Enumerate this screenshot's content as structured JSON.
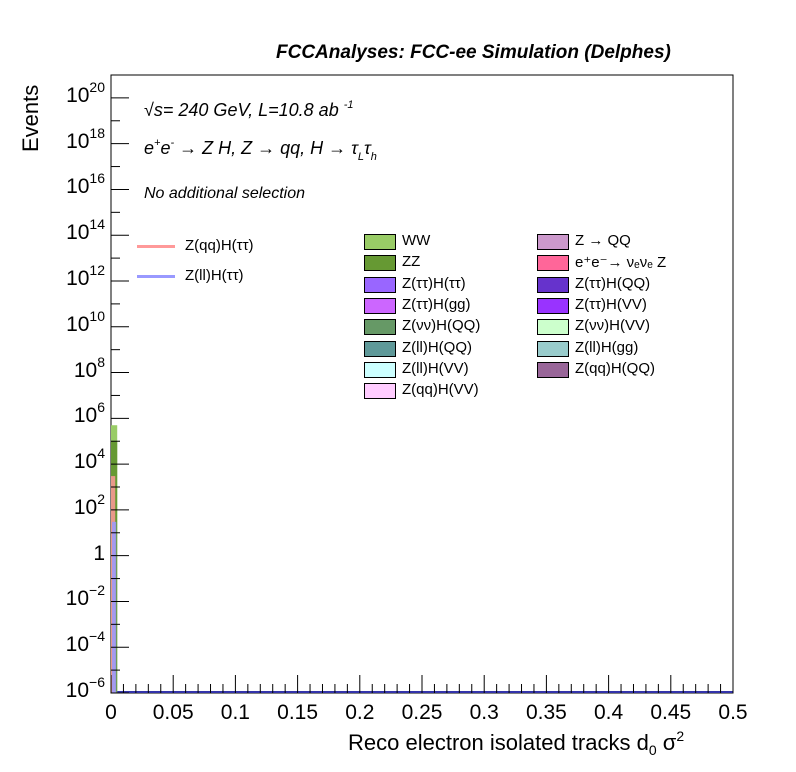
{
  "header": {
    "title": "FCCAnalyses: FCC-ee Simulation (Delphes)"
  },
  "annotations": {
    "energy": "= 240 GeV, L=10.8 ab",
    "energy_prefix": "√s",
    "lumi_exp": "-1",
    "process_prefix": "e",
    "process_sup_plus": "+",
    "process_e2": "e",
    "process_sup_minus": "-",
    "process_rest": " → Z H, Z → qq, H → τ",
    "process_sub_L": "L",
    "process_tau2": "τ",
    "process_sub_h": "h",
    "selection": "No additional selection"
  },
  "chart_data": {
    "type": "bar",
    "title": "FCCAnalyses: FCC-ee Simulation (Delphes)",
    "xlabel": "Reco electron isolated tracks d",
    "xlabel_sub": "0",
    "xlabel_sigma": " σ",
    "xlabel_sup": "2",
    "ylabel": "Events",
    "xlim": [
      0,
      0.5
    ],
    "ylim": [
      1e-06,
      1e+21
    ],
    "log_y": true,
    "grid": false,
    "x_ticks": [
      "0",
      "0.05",
      "0.1",
      "0.15",
      "0.2",
      "0.25",
      "0.3",
      "0.35",
      "0.4",
      "0.45",
      "0.5"
    ],
    "x_tick_values": [
      0,
      0.05,
      0.1,
      0.15,
      0.2,
      0.25,
      0.3,
      0.35,
      0.4,
      0.45,
      0.5
    ],
    "y_ticks": [
      {
        "base": "10",
        "exp": "20",
        "value": 1e+20
      },
      {
        "base": "10",
        "exp": "18",
        "value": 1e+18
      },
      {
        "base": "10",
        "exp": "16",
        "value": 1e+16
      },
      {
        "base": "10",
        "exp": "14",
        "value": 100000000000000.0
      },
      {
        "base": "10",
        "exp": "12",
        "value": 1000000000000.0
      },
      {
        "base": "10",
        "exp": "10",
        "value": 10000000000.0
      },
      {
        "base": "10",
        "exp": "8",
        "value": 100000000.0
      },
      {
        "base": "10",
        "exp": "6",
        "value": 1000000.0
      },
      {
        "base": "10",
        "exp": "4",
        "value": 10000.0
      },
      {
        "base": "10",
        "exp": "2",
        "value": 100.0
      },
      {
        "base": "1",
        "exp": "",
        "value": 1
      },
      {
        "base": "10",
        "exp": "−2",
        "value": 0.01
      },
      {
        "base": "10",
        "exp": "−4",
        "value": 0.0001
      },
      {
        "base": "10",
        "exp": "−6",
        "value": 1e-06
      }
    ],
    "stacked_bins": [
      {
        "x0": 0.0,
        "x1": 0.005,
        "name": "ZZ",
        "value": 100000.0
      },
      {
        "x0": 0.0,
        "x1": 0.005,
        "name": "WW",
        "value": 500000.0
      }
    ],
    "signal_lines": [
      {
        "name": "Z(qq)H(ττ)",
        "color": "#ff9999",
        "x1": 0.005,
        "value": 3000.0
      },
      {
        "name": "Z(ll)H(ττ)",
        "color": "#9999ff",
        "x1": 0.005,
        "value": 30.0
      }
    ],
    "legend_lines": [
      {
        "name": "Z(qq)H(ττ)",
        "color": "#ff9999"
      },
      {
        "name": "Z(ll)H(ττ)",
        "color": "#9999ff"
      }
    ],
    "legend_col1": [
      {
        "name": "WW",
        "color": "#99cc66"
      },
      {
        "name": "ZZ",
        "color": "#669933"
      },
      {
        "name": "Z(ττ)H(ττ)",
        "color": "#9966ff"
      },
      {
        "name": "Z(ττ)H(gg)",
        "color": "#cc66ff"
      },
      {
        "name": "Z(νν)H(QQ)",
        "color": "#669966"
      },
      {
        "name": "Z(ll)H(QQ)",
        "color": "#5f9999"
      },
      {
        "name": "Z(ll)H(VV)",
        "color": "#ccffff"
      },
      {
        "name": "Z(qq)H(VV)",
        "color": "#ffccff"
      }
    ],
    "legend_col2": [
      {
        "name": "Z → QQ",
        "color": "#cc99cc"
      },
      {
        "name": "e⁺e⁻→ νₑνₑ Z",
        "color": "#ff6699"
      },
      {
        "name": "Z(ττ)H(QQ)",
        "color": "#6633cc"
      },
      {
        "name": "Z(ττ)H(VV)",
        "color": "#9933ff"
      },
      {
        "name": "Z(νν)H(VV)",
        "color": "#ccffcc"
      },
      {
        "name": "Z(ll)H(gg)",
        "color": "#99cccc"
      },
      {
        "name": "Z(qq)H(QQ)",
        "color": "#996699"
      }
    ]
  }
}
